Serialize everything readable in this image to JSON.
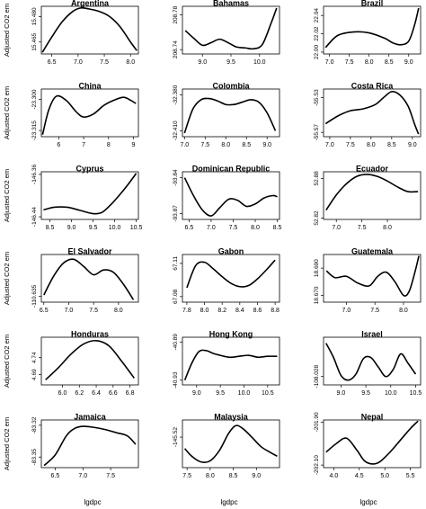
{
  "figure": {
    "ylabel": "Adjusted CO2 em",
    "xlabel": "lgdpc"
  },
  "chart_data": [
    {
      "type": "line",
      "title": "Argentina",
      "xlim": [
        6.3,
        8.15
      ],
      "ylim": [
        15.458,
        15.486
      ],
      "xticks": [
        6.5,
        7.0,
        7.5,
        8.0
      ],
      "xtick_labels": [
        "6.5",
        "7.0",
        "7.5",
        "8.0"
      ],
      "yticks": [
        15.465,
        15.48
      ],
      "ytick_labels": [
        "15.465",
        "15.480"
      ],
      "x": [
        6.32,
        6.5,
        6.7,
        6.9,
        7.05,
        7.2,
        7.4,
        7.6,
        7.8,
        8.0,
        8.12
      ],
      "y": [
        15.459,
        15.468,
        15.477,
        15.483,
        15.485,
        15.4845,
        15.483,
        15.48,
        15.474,
        15.465,
        15.46
      ]
    },
    {
      "type": "line",
      "title": "Bahamas",
      "xlim": [
        8.65,
        10.35
      ],
      "ylim": [
        208.735,
        208.79
      ],
      "xticks": [
        9.0,
        9.5,
        10.0
      ],
      "xtick_labels": [
        "9.0",
        "9.5",
        "10.0"
      ],
      "yticks": [
        208.74,
        208.78
      ],
      "ytick_labels": [
        "208.74",
        "208.78"
      ],
      "x": [
        8.7,
        8.85,
        9.0,
        9.15,
        9.3,
        9.45,
        9.6,
        9.75,
        9.9,
        10.05,
        10.2,
        10.3
      ],
      "y": [
        208.762,
        208.753,
        208.745,
        208.748,
        208.752,
        208.748,
        208.743,
        208.742,
        208.741,
        208.746,
        208.77,
        208.788
      ]
    },
    {
      "type": "line",
      "title": "Brazil",
      "xlim": [
        6.85,
        9.3
      ],
      "ylim": [
        21.998,
        22.05
      ],
      "xticks": [
        7.0,
        7.5,
        8.0,
        8.5,
        9.0
      ],
      "xtick_labels": [
        "7.0",
        "7.5",
        "8.0",
        "8.5",
        "9.0"
      ],
      "yticks": [
        22.0,
        22.02,
        22.04
      ],
      "ytick_labels": [
        "22.00",
        "22.02",
        "22.04"
      ],
      "x": [
        6.9,
        7.2,
        7.6,
        8.0,
        8.4,
        8.6,
        8.8,
        9.0,
        9.15,
        9.25
      ],
      "y": [
        22.005,
        22.018,
        22.022,
        22.021,
        22.015,
        22.01,
        22.008,
        22.012,
        22.03,
        22.048
      ]
    },
    {
      "type": "line",
      "title": "China",
      "xlim": [
        5.3,
        9.2
      ],
      "ylim": [
        -23.318,
        -23.295
      ],
      "xticks": [
        6,
        7,
        8,
        9
      ],
      "xtick_labels": [
        "6",
        "7",
        "8",
        "9"
      ],
      "yticks": [
        -23.315,
        -23.3
      ],
      "ytick_labels": [
        "-23.315",
        "-23.300"
      ],
      "x": [
        5.35,
        5.6,
        5.9,
        6.3,
        6.7,
        7.0,
        7.4,
        7.8,
        8.2,
        8.6,
        8.9,
        9.1
      ],
      "y": [
        -23.317,
        -23.305,
        -23.2985,
        -23.3005,
        -23.306,
        -23.3085,
        -23.307,
        -23.303,
        -23.3005,
        -23.299,
        -23.3005,
        -23.302
      ]
    },
    {
      "type": "line",
      "title": "Colombia",
      "xlim": [
        6.95,
        9.3
      ],
      "ylim": [
        -32.415,
        -32.375
      ],
      "xticks": [
        7.0,
        7.5,
        8.0,
        8.5,
        9.0
      ],
      "xtick_labels": [
        "7.0",
        "7.5",
        "8.0",
        "8.5",
        "9.0"
      ],
      "yticks": [
        -32.41,
        -32.38
      ],
      "ytick_labels": [
        "-32.410",
        "-32.380"
      ],
      "x": [
        7.0,
        7.2,
        7.4,
        7.6,
        7.8,
        8.0,
        8.2,
        8.4,
        8.6,
        8.8,
        9.0,
        9.2
      ],
      "y": [
        -32.412,
        -32.392,
        -32.384,
        -32.383,
        -32.385,
        -32.388,
        -32.388,
        -32.386,
        -32.384,
        -32.386,
        -32.395,
        -32.41
      ]
    },
    {
      "type": "line",
      "title": "Costa Rica",
      "xlim": [
        6.85,
        9.2
      ],
      "ylim": [
        -55.575,
        -55.52
      ],
      "xticks": [
        7.0,
        7.5,
        8.0,
        8.5,
        9.0
      ],
      "xtick_labels": [
        "7.0",
        "7.5",
        "8.0",
        "8.5",
        "9.0"
      ],
      "yticks": [
        -55.57,
        -55.53
      ],
      "ytick_labels": [
        "-55.57",
        "-55.53"
      ],
      "x": [
        6.9,
        7.2,
        7.5,
        7.8,
        8.1,
        8.3,
        8.5,
        8.7,
        8.9,
        9.05,
        9.15
      ],
      "y": [
        -55.56,
        -55.551,
        -55.545,
        -55.543,
        -55.538,
        -55.53,
        -55.523,
        -55.527,
        -55.54,
        -55.56,
        -55.572
      ]
    },
    {
      "type": "line",
      "title": "Cyprus",
      "xlim": [
        8.3,
        10.55
      ],
      "ylim": [
        -146.445,
        -146.355
      ],
      "xticks": [
        8.5,
        9.0,
        9.5,
        10.0,
        10.5
      ],
      "xtick_labels": [
        "8.5",
        "9.0",
        "9.5",
        "10.0",
        "10.5"
      ],
      "yticks": [
        -146.44,
        -146.36
      ],
      "ytick_labels": [
        "-146.44",
        "-146.36"
      ],
      "x": [
        8.35,
        8.6,
        8.9,
        9.2,
        9.5,
        9.7,
        9.9,
        10.1,
        10.3,
        10.5
      ],
      "y": [
        -146.427,
        -146.422,
        -146.422,
        -146.428,
        -146.434,
        -146.432,
        -146.418,
        -146.4,
        -146.38,
        -146.358
      ]
    },
    {
      "type": "line",
      "title": "Dominican Republic",
      "xlim": [
        6.35,
        8.55
      ],
      "ylim": [
        -93.875,
        -93.835
      ],
      "xticks": [
        6.5,
        7.0,
        7.5,
        8.0,
        8.5
      ],
      "xtick_labels": [
        "6.5",
        "7.0",
        "7.5",
        "8.0",
        "8.5"
      ],
      "yticks": [
        -93.87,
        -93.84
      ],
      "ytick_labels": [
        "-93.87",
        "-93.84"
      ],
      "x": [
        6.4,
        6.6,
        6.8,
        7.0,
        7.2,
        7.4,
        7.6,
        7.8,
        8.0,
        8.2,
        8.4,
        8.5
      ],
      "y": [
        -93.84,
        -93.855,
        -93.867,
        -93.872,
        -93.865,
        -93.858,
        -93.859,
        -93.864,
        -93.862,
        -93.857,
        -93.855,
        -93.856
      ]
    },
    {
      "type": "line",
      "title": "Ecuador",
      "xlim": [
        6.75,
        8.65
      ],
      "ylim": [
        52.818,
        52.89
      ],
      "xticks": [
        7.0,
        7.5,
        8.0
      ],
      "xtick_labels": [
        "7.0",
        "7.5",
        "8.0"
      ],
      "yticks": [
        52.82,
        52.88
      ],
      "ytick_labels": [
        "52.82",
        "52.88"
      ],
      "x": [
        6.8,
        7.0,
        7.2,
        7.4,
        7.6,
        7.8,
        8.0,
        8.2,
        8.4,
        8.6
      ],
      "y": [
        52.832,
        52.855,
        52.872,
        52.883,
        52.886,
        52.883,
        52.876,
        52.867,
        52.86,
        52.86
      ]
    },
    {
      "type": "line",
      "title": "El Salvador",
      "xlim": [
        6.45,
        8.4
      ],
      "ylim": [
        -110.64,
        -110.6
      ],
      "xticks": [
        6.5,
        7.0,
        7.5,
        8.0
      ],
      "xtick_labels": [
        "6.5",
        "7.0",
        "7.5",
        "8.0"
      ],
      "yticks": [
        -110.635
      ],
      "ytick_labels": [
        "-110.635"
      ],
      "x": [
        6.5,
        6.7,
        6.9,
        7.1,
        7.3,
        7.5,
        7.7,
        7.9,
        8.1,
        8.3
      ],
      "y": [
        -110.634,
        -110.618,
        -110.607,
        -110.604,
        -110.61,
        -110.617,
        -110.613,
        -110.615,
        -110.625,
        -110.638
      ]
    },
    {
      "type": "line",
      "title": "Gabon",
      "xlim": [
        7.75,
        8.85
      ],
      "ylim": [
        67.075,
        67.118
      ],
      "xticks": [
        7.8,
        8.0,
        8.2,
        8.4,
        8.6,
        8.8
      ],
      "xtick_labels": [
        "7.8",
        "8.0",
        "8.2",
        "8.4",
        "8.6",
        "8.8"
      ],
      "yticks": [
        67.08,
        67.11
      ],
      "ytick_labels": [
        "67.08",
        "67.11"
      ],
      "x": [
        7.8,
        7.9,
        8.0,
        8.1,
        8.2,
        8.3,
        8.4,
        8.5,
        8.6,
        8.7,
        8.8
      ],
      "y": [
        67.088,
        67.108,
        67.111,
        67.105,
        67.098,
        67.092,
        67.089,
        67.09,
        67.096,
        67.104,
        67.113
      ]
    },
    {
      "type": "line",
      "title": "Guatemala",
      "xlim": [
        6.6,
        8.3
      ],
      "ylim": [
        18.665,
        18.7
      ],
      "xticks": [
        7.0,
        7.5,
        8.0
      ],
      "xtick_labels": [
        "7.0",
        "7.5",
        "8.0"
      ],
      "yticks": [
        18.67,
        18.69
      ],
      "ytick_labels": [
        "18.670",
        "18.690"
      ],
      "x": [
        6.65,
        6.8,
        7.0,
        7.2,
        7.4,
        7.55,
        7.7,
        7.85,
        8.0,
        8.1,
        8.2,
        8.27
      ],
      "y": [
        18.688,
        18.683,
        18.684,
        18.679,
        18.677,
        18.684,
        18.687,
        18.68,
        18.67,
        18.673,
        18.687,
        18.699
      ]
    },
    {
      "type": "line",
      "title": "Honduras",
      "xlim": [
        5.75,
        6.9
      ],
      "ylim": [
        4.66,
        4.8
      ],
      "xticks": [
        6.0,
        6.2,
        6.4,
        6.6,
        6.8
      ],
      "xtick_labels": [
        "6.0",
        "6.2",
        "6.4",
        "6.6",
        "6.8"
      ],
      "yticks": [
        4.69,
        4.74
      ],
      "ytick_labels": [
        "4.69",
        "4.74"
      ],
      "x": [
        5.8,
        5.95,
        6.1,
        6.25,
        6.4,
        6.55,
        6.7,
        6.85
      ],
      "y": [
        4.675,
        4.71,
        4.75,
        4.78,
        4.79,
        4.775,
        4.73,
        4.68
      ]
    },
    {
      "type": "line",
      "title": "Hong Kong",
      "xlim": [
        8.7,
        10.75
      ],
      "ylim": [
        -40.935,
        -40.885
      ],
      "xticks": [
        9.0,
        9.5,
        10.0,
        10.5
      ],
      "xtick_labels": [
        "9.0",
        "9.5",
        "10.0",
        "10.5"
      ],
      "yticks": [
        -40.93,
        -40.89
      ],
      "ytick_labels": [
        "-40.93",
        "-40.89"
      ],
      "x": [
        8.75,
        8.9,
        9.05,
        9.2,
        9.35,
        9.5,
        9.7,
        9.9,
        10.1,
        10.3,
        10.5,
        10.7
      ],
      "y": [
        -40.93,
        -40.912,
        -40.9,
        -40.899,
        -40.902,
        -40.904,
        -40.906,
        -40.905,
        -40.904,
        -40.906,
        -40.905,
        -40.905
      ]
    },
    {
      "type": "line",
      "title": "Israel",
      "xlim": [
        8.65,
        10.6
      ],
      "ylim": [
        -108.035,
        -107.995
      ],
      "xticks": [
        9.0,
        9.5,
        10.0,
        10.5
      ],
      "xtick_labels": [
        "9.0",
        "9.5",
        "10.0",
        "10.5"
      ],
      "yticks": [
        -108.028
      ],
      "ytick_labels": [
        "-108.028"
      ],
      "x": [
        8.7,
        8.85,
        9.0,
        9.15,
        9.3,
        9.45,
        9.6,
        9.75,
        9.9,
        10.05,
        10.2,
        10.35,
        10.5
      ],
      "y": [
        -108.0,
        -108.012,
        -108.027,
        -108.031,
        -108.026,
        -108.013,
        -108.012,
        -108.02,
        -108.028,
        -108.022,
        -108.009,
        -108.017,
        -108.026
      ]
    },
    {
      "type": "line",
      "title": "Jamaica",
      "xlim": [
        6.25,
        8.0
      ],
      "ylim": [
        -83.36,
        -83.315
      ],
      "xticks": [
        6.5,
        7.0,
        7.5
      ],
      "xtick_labels": [
        "6.5",
        "7.0",
        "7.5"
      ],
      "yticks": [
        -83.35,
        -83.32
      ],
      "ytick_labels": [
        "-83.35",
        "-83.32"
      ],
      "x": [
        6.3,
        6.5,
        6.7,
        6.85,
        7.0,
        7.2,
        7.4,
        7.6,
        7.8,
        7.95
      ],
      "y": [
        -83.358,
        -83.348,
        -83.33,
        -83.323,
        -83.321,
        -83.322,
        -83.324,
        -83.327,
        -83.33,
        -83.338
      ]
    },
    {
      "type": "line",
      "title": "Malaysia",
      "xlim": [
        7.4,
        9.5
      ],
      "ylim": [
        -145.6,
        -145.475
      ],
      "xticks": [
        7.5,
        8.0,
        8.5,
        9.0
      ],
      "xtick_labels": [
        "7.5",
        "8.0",
        "8.5",
        "9.0"
      ],
      "yticks": [
        -145.52
      ],
      "ytick_labels": [
        "-145.52"
      ],
      "x": [
        7.45,
        7.6,
        7.8,
        8.0,
        8.2,
        8.4,
        8.55,
        8.7,
        8.9,
        9.1,
        9.3,
        9.45
      ],
      "y": [
        -145.55,
        -145.57,
        -145.585,
        -145.582,
        -145.555,
        -145.51,
        -145.49,
        -145.497,
        -145.52,
        -145.545,
        -145.56,
        -145.57
      ]
    },
    {
      "type": "line",
      "title": "Nepal",
      "xlim": [
        3.8,
        5.7
      ],
      "ylim": [
        -202.112,
        -201.89
      ],
      "xticks": [
        4.0,
        4.5,
        5.0,
        5.5
      ],
      "xtick_labels": [
        "4.0",
        "4.5",
        "5.0",
        "5.5"
      ],
      "yticks": [
        -202.1,
        -201.9
      ],
      "ytick_labels": [
        "-202.10",
        "-201.90"
      ],
      "x": [
        3.85,
        4.05,
        4.25,
        4.45,
        4.6,
        4.75,
        4.9,
        5.1,
        5.3,
        5.5,
        5.65
      ],
      "y": [
        -202.04,
        -202.0,
        -201.975,
        -202.03,
        -202.08,
        -202.095,
        -202.085,
        -202.04,
        -201.985,
        -201.93,
        -201.895
      ]
    }
  ]
}
